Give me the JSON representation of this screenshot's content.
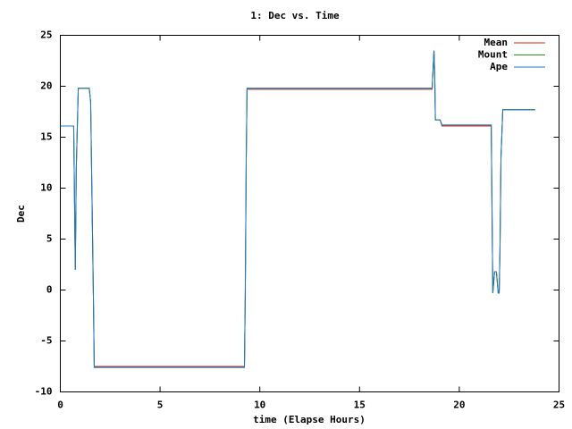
{
  "chart_data": {
    "type": "line",
    "title": "1: Dec vs. Time",
    "x_label": "time (Elapse Hours)",
    "y_label": "Dec",
    "x": [
      0,
      0.67,
      0.75,
      0.8,
      0.9,
      1.45,
      1.52,
      1.57,
      1.66,
      1.7,
      9.23,
      9.27,
      9.32,
      9.36,
      18.64,
      18.73,
      18.77,
      18.8,
      19.04,
      19.13,
      21.6,
      21.64,
      21.68,
      21.77,
      21.86,
      21.95,
      22.0,
      22.04,
      22.09,
      22.18,
      23.8
    ],
    "series": [
      {
        "name": "Mean",
        "color": "#e0201e",
        "values": [
          16.1,
          16.1,
          2,
          12,
          19.8,
          19.8,
          18.5,
          11.5,
          -1,
          -7.5,
          -7.5,
          -0.5,
          13,
          19.7,
          19.7,
          23.5,
          21,
          16.7,
          16.7,
          16.1,
          16.1,
          8,
          -0.3,
          1.8,
          1.8,
          -0.3,
          -0.3,
          4,
          13,
          17.7,
          17.7
        ]
      },
      {
        "name": "Mount",
        "color": "#1fa31f",
        "values": [
          16.1,
          16.1,
          2,
          12,
          19.8,
          19.8,
          18.5,
          11.5,
          -1,
          -7.6,
          -7.6,
          -0.5,
          13,
          19.8,
          19.8,
          23.5,
          21,
          16.7,
          16.7,
          16.2,
          16.2,
          8,
          -0.3,
          1.8,
          1.8,
          -0.3,
          -0.3,
          4,
          13,
          17.7,
          17.7
        ]
      },
      {
        "name": "Ape",
        "color": "#1f77c4",
        "values": [
          16.1,
          16.1,
          2,
          12,
          19.8,
          19.8,
          18.5,
          11.5,
          -1,
          -7.6,
          -7.6,
          -0.5,
          13,
          19.8,
          19.8,
          23.5,
          21,
          16.7,
          16.7,
          16.2,
          16.2,
          8,
          -0.3,
          1.8,
          1.8,
          -0.3,
          -0.3,
          4,
          13,
          17.7,
          17.7
        ]
      }
    ],
    "xlim": [
      0,
      25
    ],
    "xticks": [
      0,
      5,
      10,
      15,
      20,
      25
    ],
    "ylim": [
      -10,
      25
    ],
    "yticks": [
      -10,
      -5,
      0,
      5,
      10,
      15,
      20,
      25
    ],
    "legend": "top-right",
    "grid": false
  }
}
